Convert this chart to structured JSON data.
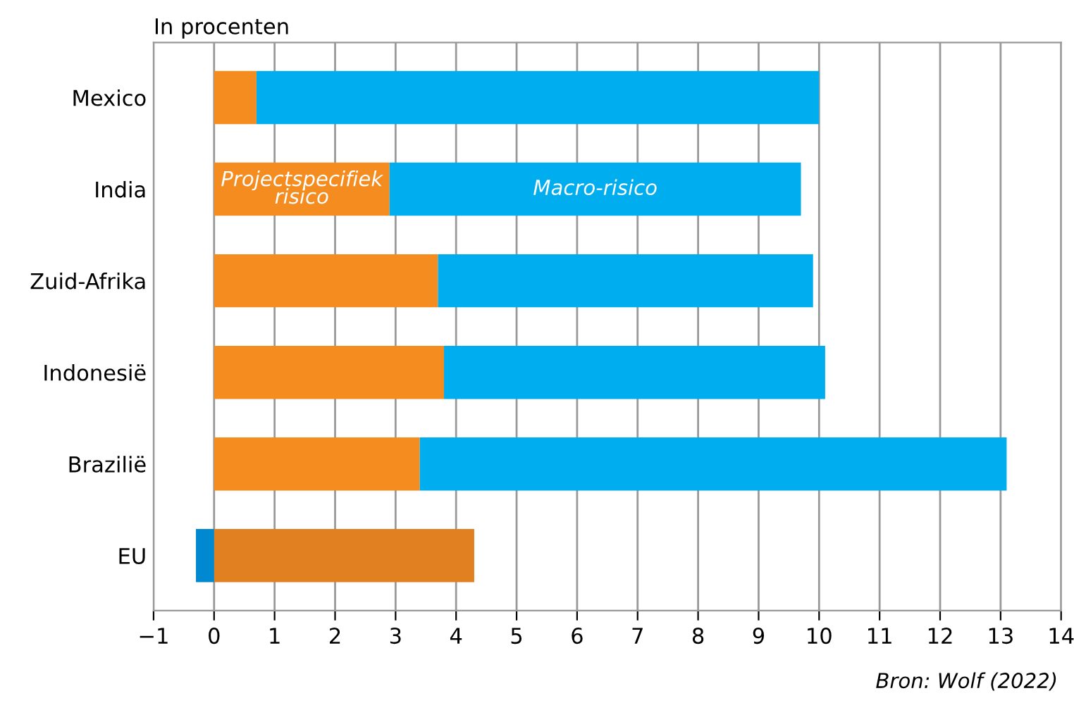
{
  "chart_data": {
    "type": "bar",
    "orientation": "horizontal",
    "stacked": true,
    "xlabel": "In procenten",
    "categories": [
      "Mexico",
      "India",
      "Zuid-Afrika",
      "Indonesië",
      "Brazilië",
      "EU"
    ],
    "series": [
      {
        "name": "Projectspecifiek risico",
        "colors": [
          "#f48c20",
          "#f48c20",
          "#f48c20",
          "#f48c20",
          "#f48c20",
          "#e08020"
        ],
        "values": [
          0.7,
          2.9,
          3.7,
          3.8,
          3.4,
          4.3
        ]
      },
      {
        "name": "Macro-risico",
        "colors": [
          "#00aeef",
          "#00aeef",
          "#00aeef",
          "#00aeef",
          "#00aeef",
          "#0088d0"
        ],
        "values": [
          9.3,
          6.8,
          6.2,
          6.3,
          9.7,
          -0.3
        ]
      }
    ],
    "xlim": [
      -1,
      14
    ],
    "xticks": [
      {
        "value": -1,
        "label": "−1"
      },
      0,
      1,
      2,
      3,
      4,
      5,
      6,
      7,
      8,
      9,
      10,
      11,
      12,
      13,
      14
    ],
    "grid": "x",
    "legend": false,
    "annotations": [
      "Bron: Wolf (2022)"
    ]
  }
}
